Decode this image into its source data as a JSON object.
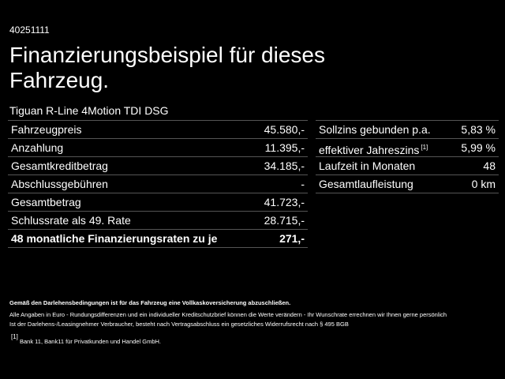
{
  "header": {
    "id": "40251111",
    "title": "Finanzierungsbeispiel für dieses Fahrzeug.",
    "model": "Tiguan R-Line 4Motion TDI DSG"
  },
  "left_table": {
    "rows": [
      {
        "label": "Fahrzeugpreis",
        "value": "45.580,-"
      },
      {
        "label": "Anzahlung",
        "value": "11.395,-"
      },
      {
        "label": "Gesamtkreditbetrag",
        "value": "34.185,-"
      },
      {
        "label": "Abschlussgebühren",
        "value": "-"
      },
      {
        "label": "Gesamtbetrag",
        "value": "41.723,-"
      },
      {
        "label": "Schlussrate als 49. Rate",
        "value": "28.715,-"
      },
      {
        "label": "48 monatliche Finanzierungsraten zu je",
        "value": "271,-"
      }
    ]
  },
  "right_table": {
    "rows": [
      {
        "label": "Sollzins gebunden p.a.",
        "value": "5,83 %"
      },
      {
        "label": "effektiver Jahreszins",
        "note": "[1]",
        "value": "5,99 %"
      },
      {
        "label": "Laufzeit in Monaten",
        "value": "48"
      },
      {
        "label": "Gesamtlaufleistung",
        "value": "0 km"
      }
    ]
  },
  "footnotes": {
    "bold": "Gemäß den Darlehensbedingungen ist für das Fahrzeug eine Vollkaskoversicherung abzuschließen.",
    "lines": [
      "Alle Angaben in Euro - Rundungsdifferenzen und ein individueller Kreditschutzbrief können die Werte verändern - Ihr Wunschrate errechnen wir Ihnen gerne persönlich",
      "Ist der Darlehens-/Leasingnehmer Verbraucher, besteht nach Vertragsabschluss ein gesetzliches Widerrufsrecht nach § 495 BGB"
    ],
    "refs": [
      {
        "mark": "[1]",
        "text": "Bank 11, Bank11 für Privatkunden und Handel GmbH."
      }
    ]
  }
}
